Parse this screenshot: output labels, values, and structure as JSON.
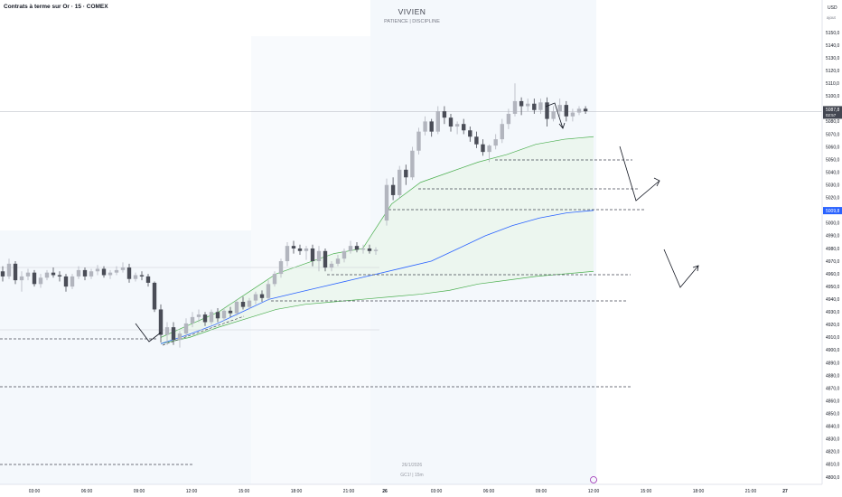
{
  "header": {
    "symbol": "Contrats à terme sur Or · 15 · COMEX",
    "title": "VIVIEN",
    "subtitle": "PATIENCE  |  DISCIPLINE",
    "currency": "USD",
    "currency_sub": "ajout"
  },
  "watermark": {
    "date": "26/1/2026",
    "symbol": "GC1!  |  15m"
  },
  "axis": {
    "price_ticks": [
      "5150,0",
      "5140,0",
      "5130,0",
      "5120,0",
      "5110,0",
      "5100,0",
      "5090,0",
      "5080,0",
      "5070,0",
      "5060,0",
      "5050,0",
      "5040,0",
      "5030,0",
      "5020,0",
      "5010,0",
      "5000,0",
      "4990,0",
      "4980,0",
      "4970,0",
      "4960,0",
      "4950,0",
      "4940,0",
      "4930,0",
      "4920,0",
      "4910,0",
      "4900,0",
      "4890,0",
      "4880,0",
      "4870,0",
      "4860,0",
      "4850,0",
      "4840,0",
      "4830,0",
      "4820,0",
      "4810,0",
      "4800,0"
    ],
    "time_ticks": [
      "03:00",
      "06:00",
      "09:00",
      "12:00",
      "15:00",
      "18:00",
      "21:00",
      "26",
      "03:00",
      "06:00",
      "09:00",
      "12:00",
      "15:00",
      "18:00",
      "21:00",
      "27"
    ],
    "price_label_current": "5087,8",
    "price_label_countdown": "02:57",
    "price_label_vwap": "5009,8"
  },
  "colors": {
    "up": "#b2b5be",
    "down": "#4a4d57",
    "vwap": "#2962ff",
    "band": "#4caf50",
    "label_blue": "#2962ff",
    "label_dark": "#434651"
  },
  "chart_data": {
    "type": "candlestick",
    "ylim": [
      4800,
      5150
    ],
    "levels": [
      5050,
      5030,
      5013,
      4960,
      4944,
      4917,
      4875,
      4810
    ],
    "current_price": 5087.8,
    "vwap_price": 5009.8,
    "candles": [
      [
        4962,
        4966,
        4954,
        4958
      ],
      [
        4958,
        4972,
        4956,
        4968
      ],
      [
        4968,
        4970,
        4952,
        4955
      ],
      [
        4955,
        4962,
        4946,
        4958
      ],
      [
        4958,
        4964,
        4955,
        4961
      ],
      [
        4961,
        4963,
        4950,
        4952
      ],
      [
        4952,
        4960,
        4949,
        4957
      ],
      [
        4957,
        4963,
        4955,
        4961
      ],
      [
        4961,
        4965,
        4957,
        4959
      ],
      [
        4959,
        4962,
        4954,
        4958
      ],
      [
        4958,
        4960,
        4946,
        4950
      ],
      [
        4950,
        4960,
        4948,
        4958
      ],
      [
        4958,
        4966,
        4956,
        4963
      ],
      [
        4963,
        4965,
        4955,
        4958
      ],
      [
        4958,
        4964,
        4956,
        4962
      ],
      [
        4962,
        4967,
        4959,
        4964
      ],
      [
        4964,
        4966,
        4957,
        4959
      ],
      [
        4959,
        4963,
        4956,
        4961
      ],
      [
        4961,
        4966,
        4959,
        4963
      ],
      [
        4963,
        4969,
        4961,
        4965
      ],
      [
        4965,
        4968,
        4953,
        4956
      ],
      [
        4956,
        4961,
        4954,
        4959
      ],
      [
        4959,
        4962,
        4955,
        4958
      ],
      [
        4958,
        4960,
        4950,
        4953
      ],
      [
        4953,
        4954,
        4930,
        4932
      ],
      [
        4932,
        4936,
        4906,
        4912
      ],
      [
        4912,
        4922,
        4904,
        4918
      ],
      [
        4918,
        4922,
        4904,
        4908
      ],
      [
        4908,
        4915,
        4902,
        4913
      ],
      [
        4913,
        4925,
        4911,
        4921
      ],
      [
        4921,
        4930,
        4918,
        4926
      ],
      [
        4926,
        4932,
        4922,
        4928
      ],
      [
        4928,
        4930,
        4919,
        4922
      ],
      [
        4922,
        4932,
        4920,
        4930
      ],
      [
        4930,
        4933,
        4922,
        4925
      ],
      [
        4925,
        4933,
        4923,
        4931
      ],
      [
        4931,
        4934,
        4926,
        4929
      ],
      [
        4929,
        4940,
        4927,
        4938
      ],
      [
        4938,
        4942,
        4932,
        4934
      ],
      [
        4934,
        4941,
        4932,
        4939
      ],
      [
        4939,
        4946,
        4936,
        4944
      ],
      [
        4944,
        4947,
        4938,
        4941
      ],
      [
        4941,
        4955,
        4939,
        4952
      ],
      [
        4952,
        4962,
        4950,
        4960
      ],
      [
        4960,
        4972,
        4957,
        4970
      ],
      [
        4970,
        4985,
        4966,
        4982
      ],
      [
        4982,
        4986,
        4976,
        4980
      ],
      [
        4980,
        4983,
        4975,
        4978
      ],
      [
        4978,
        4982,
        4971,
        4980
      ],
      [
        4980,
        4983,
        4966,
        4970
      ],
      [
        4970,
        4982,
        4962,
        4978
      ],
      [
        4978,
        4980,
        4962,
        4965
      ],
      [
        4965,
        4970,
        4962,
        4968
      ],
      [
        4968,
        4975,
        4966,
        4972
      ],
      [
        4972,
        4980,
        4969,
        4978
      ],
      [
        4978,
        4986,
        4976,
        4982
      ],
      [
        4982,
        4985,
        4977,
        4979
      ],
      [
        4979,
        4983,
        4976,
        4980
      ],
      [
        4980,
        4983,
        4976,
        4978
      ],
      [
        4978,
        4981,
        4975,
        4979
      ],
      [
        5002,
        5035,
        4998,
        5030
      ],
      [
        5030,
        5036,
        5018,
        5022
      ],
      [
        5022,
        5045,
        5019,
        5042
      ],
      [
        5042,
        5046,
        5030,
        5036
      ],
      [
        5036,
        5060,
        5034,
        5057
      ],
      [
        5057,
        5075,
        5054,
        5072
      ],
      [
        5072,
        5084,
        5069,
        5080
      ],
      [
        5080,
        5082,
        5068,
        5072
      ],
      [
        5072,
        5092,
        5070,
        5088
      ],
      [
        5088,
        5092,
        5078,
        5083
      ],
      [
        5083,
        5086,
        5072,
        5076
      ],
      [
        5076,
        5080,
        5070,
        5078
      ],
      [
        5078,
        5082,
        5070,
        5073
      ],
      [
        5073,
        5076,
        5064,
        5068
      ],
      [
        5068,
        5072,
        5059,
        5062
      ],
      [
        5062,
        5066,
        5053,
        5056
      ],
      [
        5056,
        5062,
        5048,
        5061
      ],
      [
        5061,
        5070,
        5058,
        5066
      ],
      [
        5066,
        5082,
        5063,
        5078
      ],
      [
        5078,
        5090,
        5074,
        5086
      ],
      [
        5086,
        5110,
        5084,
        5096
      ],
      [
        5096,
        5099,
        5085,
        5092
      ],
      [
        5092,
        5098,
        5088,
        5094
      ],
      [
        5094,
        5098,
        5086,
        5089
      ],
      [
        5089,
        5098,
        5086,
        5095
      ],
      [
        5095,
        5099,
        5076,
        5082
      ],
      [
        5082,
        5092,
        5080,
        5088
      ],
      [
        5088,
        5098,
        5084,
        5093
      ],
      [
        5093,
        5096,
        5080,
        5084
      ],
      [
        5084,
        5090,
        5080,
        5087
      ],
      [
        5087,
        5092,
        5085,
        5090
      ],
      [
        5090,
        5092,
        5086,
        5088
      ]
    ],
    "vwap": [
      4905,
      4912,
      4920,
      4930,
      4940,
      4945,
      4950,
      4955,
      4960,
      4965,
      4970,
      4980,
      4990,
      4998,
      5004,
      5008,
      5010
    ],
    "band_upper": [
      4910,
      4920,
      4930,
      4945,
      4960,
      4968,
      4976,
      4980,
      5015,
      5032,
      5040,
      5048,
      5054,
      5062,
      5066,
      5068
    ],
    "band_lower": [
      4905,
      4910,
      4918,
      4925,
      4932,
      4936,
      4938,
      4940,
      4942,
      4944,
      4947,
      4952,
      4955,
      4958,
      4960,
      4962
    ]
  }
}
